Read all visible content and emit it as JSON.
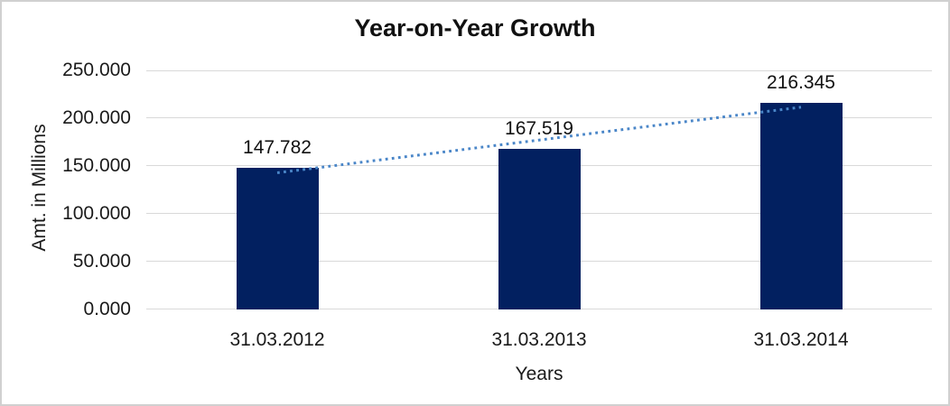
{
  "window": {
    "background": "#ffffff",
    "border_color": "#d0d0d0"
  },
  "chart_data": {
    "type": "bar",
    "title": "Year-on-Year Growth",
    "xlabel": "Years",
    "ylabel": "Amt. in Millions",
    "categories": [
      "31.03.2012",
      "31.03.2013",
      "31.03.2014"
    ],
    "values": [
      147.782,
      167.519,
      216.345
    ],
    "data_labels": [
      "147.782",
      "167.519",
      "216.345"
    ],
    "y_ticks": [
      "0.000",
      "50.000",
      "100.000",
      "150.000",
      "200.000",
      "250.000"
    ],
    "y_tick_values": [
      0,
      50,
      100,
      150,
      200,
      250
    ],
    "ylim": [
      0,
      250
    ],
    "grid": true,
    "legend": false,
    "bar_color": "#022060",
    "gridline_color": "#d9d9d9",
    "text_color": "#1a1a1a",
    "trendline": {
      "type": "linear",
      "style": "dotted",
      "color": "#4a86c8"
    }
  }
}
